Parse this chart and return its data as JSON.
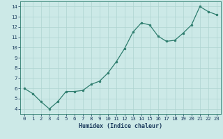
{
  "x": [
    0,
    1,
    2,
    3,
    4,
    5,
    6,
    7,
    8,
    9,
    10,
    11,
    12,
    13,
    14,
    15,
    16,
    17,
    18,
    19,
    20,
    21,
    22,
    23
  ],
  "y": [
    6.0,
    5.5,
    4.7,
    4.0,
    4.7,
    5.7,
    5.7,
    5.8,
    6.4,
    6.7,
    7.5,
    8.6,
    9.9,
    11.5,
    12.4,
    12.2,
    11.1,
    10.6,
    10.7,
    11.4,
    12.2,
    14.0,
    13.5,
    13.2
  ],
  "xlabel": "Humidex (Indice chaleur)",
  "ylim": [
    3.5,
    14.5
  ],
  "xlim": [
    -0.5,
    23.5
  ],
  "yticks": [
    4,
    5,
    6,
    7,
    8,
    9,
    10,
    11,
    12,
    13,
    14
  ],
  "xticks": [
    0,
    1,
    2,
    3,
    4,
    5,
    6,
    7,
    8,
    9,
    10,
    11,
    12,
    13,
    14,
    15,
    16,
    17,
    18,
    19,
    20,
    21,
    22,
    23
  ],
  "line_color": "#2e7d6e",
  "marker_size": 2.0,
  "bg_color": "#cce9e7",
  "grid_color": "#aed4d1",
  "tick_color": "#1a3a5c",
  "xlabel_color": "#1a3a5c"
}
